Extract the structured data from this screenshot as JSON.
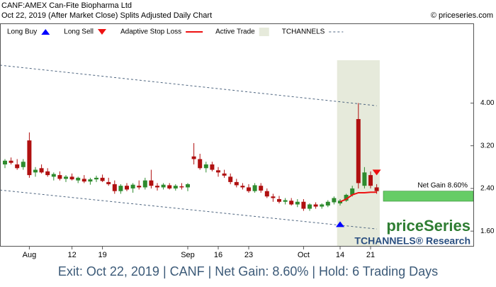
{
  "chart_data": {
    "type": "candlestick",
    "title": "CANF:AMEX Can-Fite Biopharma Ltd",
    "subtitle": "Oct 22, 2019 (After Market Close)  Splits Adjusted Daily Chart",
    "copyright": "© priceseries.com",
    "footer": "Exit: Oct 22, 2019 | CANF | Net Gain: 8.60% | Hold: 6 Trading Days",
    "brand": "priceSeries",
    "brand_sub": "TCHANNELS® Research",
    "net_gain_label": "Net Gain 8.60%",
    "net_gain_zone": [
      2.16,
      2.35
    ],
    "net_gain_color": "#66cc66",
    "up_color": "#2e8b2e",
    "down_color": "#b01010",
    "categories": [
      null,
      null,
      null,
      null,
      "Aug",
      null,
      null,
      null,
      null,
      null,
      null,
      "12",
      null,
      null,
      null,
      null,
      "19",
      null,
      null,
      null,
      null,
      null,
      null,
      null,
      null,
      null,
      null,
      null,
      null,
      null,
      "Sep",
      null,
      null,
      null,
      null,
      "16",
      null,
      null,
      null,
      null,
      "23",
      null,
      null,
      null,
      null,
      null,
      null,
      null,
      null,
      "Oct",
      null,
      null,
      null,
      null,
      null,
      "14",
      null,
      null,
      null,
      null,
      "21",
      null
    ],
    "open": [
      2.85,
      2.92,
      2.85,
      2.8,
      3.3,
      2.7,
      2.78,
      2.72,
      2.62,
      2.65,
      2.58,
      2.62,
      2.55,
      2.58,
      2.53,
      2.57,
      2.6,
      2.52,
      2.48,
      2.35,
      2.45,
      2.4,
      2.45,
      2.42,
      2.55,
      2.45,
      2.42,
      2.46,
      2.4,
      2.44,
      2.42,
      3.0,
      2.95,
      2.78,
      2.85,
      2.74,
      2.68,
      2.62,
      2.52,
      2.45,
      2.42,
      2.35,
      2.45,
      2.35,
      2.25,
      2.2,
      2.15,
      2.17,
      2.1,
      2.15,
      2.02,
      2.1,
      2.06,
      2.08,
      2.14,
      2.12,
      2.17,
      2.28,
      3.7,
      2.45,
      2.65,
      2.42
    ],
    "high": [
      2.95,
      2.98,
      2.95,
      2.95,
      3.45,
      2.8,
      2.85,
      2.78,
      2.7,
      2.72,
      2.65,
      2.68,
      2.62,
      2.65,
      2.6,
      2.64,
      2.66,
      2.6,
      2.55,
      2.48,
      2.5,
      2.5,
      2.55,
      2.6,
      2.75,
      2.5,
      2.5,
      2.5,
      2.48,
      2.5,
      2.5,
      3.25,
      3.05,
      2.9,
      2.9,
      2.8,
      2.75,
      2.68,
      2.58,
      2.5,
      2.48,
      2.5,
      2.5,
      2.4,
      2.3,
      2.26,
      2.22,
      2.22,
      2.2,
      2.2,
      2.12,
      2.14,
      2.12,
      2.18,
      2.25,
      2.2,
      2.3,
      2.45,
      4.0,
      2.8,
      2.72,
      2.48
    ],
    "low": [
      2.78,
      2.85,
      2.75,
      2.75,
      2.6,
      2.62,
      2.68,
      2.62,
      2.55,
      2.55,
      2.52,
      2.55,
      2.5,
      2.5,
      2.47,
      2.52,
      2.52,
      2.45,
      2.3,
      2.3,
      2.35,
      2.32,
      2.38,
      2.38,
      2.4,
      2.36,
      2.38,
      2.38,
      2.36,
      2.38,
      2.35,
      2.85,
      2.75,
      2.7,
      2.72,
      2.62,
      2.6,
      2.48,
      2.42,
      2.38,
      2.32,
      2.32,
      2.32,
      2.22,
      2.15,
      2.12,
      2.1,
      2.08,
      2.05,
      1.98,
      1.98,
      2.02,
      2.02,
      2.05,
      2.1,
      2.08,
      2.15,
      2.25,
      2.4,
      2.4,
      2.4,
      2.3
    ],
    "close": [
      2.92,
      2.88,
      2.78,
      2.9,
      2.65,
      2.75,
      2.7,
      2.65,
      2.67,
      2.58,
      2.62,
      2.57,
      2.6,
      2.53,
      2.57,
      2.6,
      2.54,
      2.48,
      2.35,
      2.45,
      2.38,
      2.47,
      2.42,
      2.55,
      2.45,
      2.42,
      2.47,
      2.4,
      2.45,
      2.42,
      2.48,
      2.95,
      2.78,
      2.85,
      2.75,
      2.7,
      2.64,
      2.52,
      2.46,
      2.42,
      2.35,
      2.46,
      2.36,
      2.25,
      2.22,
      2.15,
      2.18,
      2.1,
      2.15,
      2.02,
      2.1,
      2.06,
      2.1,
      2.15,
      2.22,
      2.17,
      2.28,
      2.4,
      2.5,
      2.7,
      2.45,
      2.35
    ],
    "series": [
      {
        "name": "Long Buy",
        "kind": "arrow-up",
        "color": "#0000ff",
        "values": [
          null,
          null,
          null,
          null,
          null,
          null,
          null,
          null,
          null,
          null,
          null,
          null,
          null,
          null,
          null,
          null,
          null,
          null,
          null,
          null,
          null,
          null,
          null,
          null,
          null,
          null,
          null,
          null,
          null,
          null,
          null,
          null,
          null,
          null,
          null,
          null,
          null,
          null,
          null,
          null,
          null,
          null,
          null,
          null,
          null,
          null,
          null,
          null,
          null,
          null,
          null,
          null,
          null,
          null,
          null,
          1.73,
          null,
          null,
          null,
          null,
          null,
          null
        ]
      },
      {
        "name": "Long Sell",
        "kind": "arrow-down",
        "color": "#ee1111",
        "values": [
          null,
          null,
          null,
          null,
          null,
          null,
          null,
          null,
          null,
          null,
          null,
          null,
          null,
          null,
          null,
          null,
          null,
          null,
          null,
          null,
          null,
          null,
          null,
          null,
          null,
          null,
          null,
          null,
          null,
          null,
          null,
          null,
          null,
          null,
          null,
          null,
          null,
          null,
          null,
          null,
          null,
          null,
          null,
          null,
          null,
          null,
          null,
          null,
          null,
          null,
          null,
          null,
          null,
          null,
          null,
          null,
          null,
          null,
          null,
          null,
          null,
          2.7
        ]
      },
      {
        "name": "Adaptive Stop Loss",
        "kind": "line",
        "color": "#ee1111",
        "values": [
          null,
          null,
          null,
          null,
          null,
          null,
          null,
          null,
          null,
          null,
          null,
          null,
          null,
          null,
          null,
          null,
          null,
          null,
          null,
          null,
          null,
          null,
          null,
          null,
          null,
          null,
          null,
          null,
          null,
          null,
          null,
          null,
          null,
          null,
          null,
          null,
          null,
          null,
          null,
          null,
          null,
          null,
          null,
          null,
          null,
          null,
          null,
          null,
          null,
          null,
          null,
          null,
          null,
          null,
          null,
          2.15,
          2.2,
          2.28,
          2.32,
          2.32,
          2.33,
          2.33
        ]
      },
      {
        "name": "Active Trade",
        "kind": "zone",
        "color": "#e6eadb"
      },
      {
        "name": "TCHANNELS",
        "kind": "channel",
        "color": "#4f6680",
        "upper": [
          4.71,
          3.95
        ],
        "lower": [
          2.37,
          1.64
        ]
      }
    ],
    "ylim": [
      1.31,
      5.48
    ],
    "yticks": [
      {
        "value": 1.6,
        "label": "1.60"
      },
      {
        "value": 2.4,
        "label": "2.40"
      },
      {
        "value": 3.2,
        "label": "3.20"
      },
      {
        "value": 4.0,
        "label": "4.00"
      }
    ],
    "grid": false
  }
}
